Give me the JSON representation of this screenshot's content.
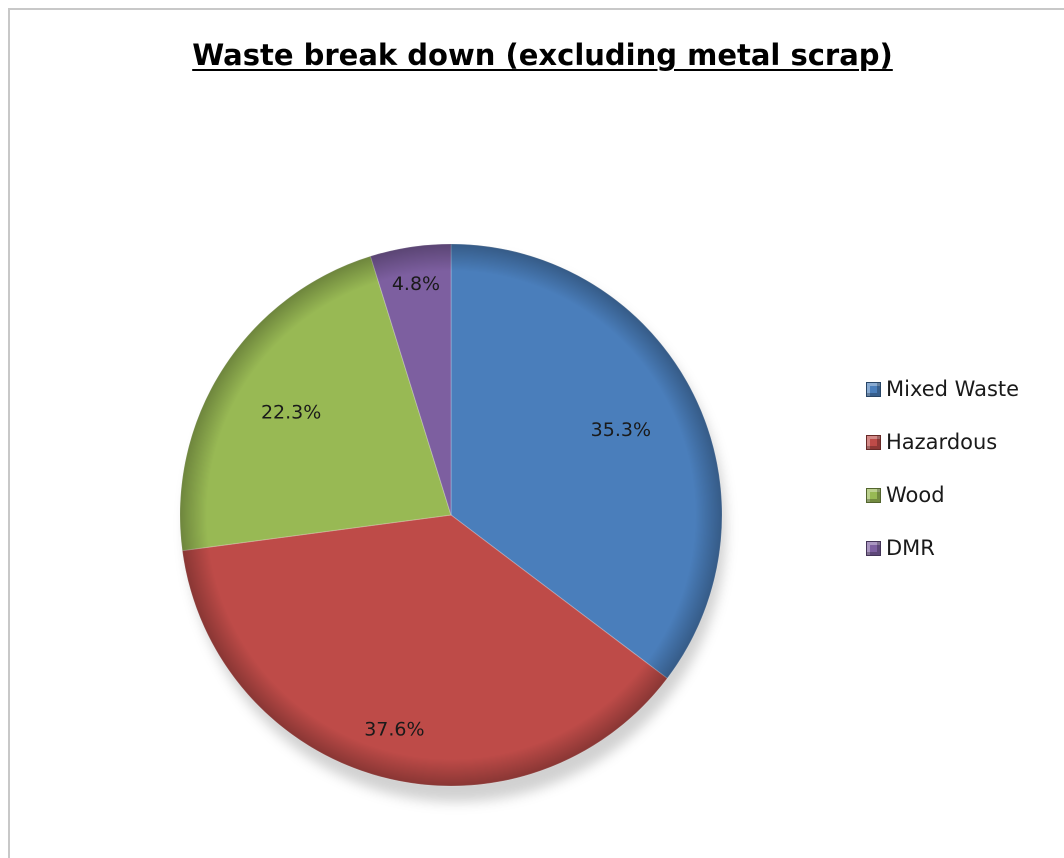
{
  "chart_data": {
    "type": "pie",
    "title": "Waste break down (excluding metal scrap)",
    "slices": [
      {
        "label": "Mixed Waste",
        "value": 35.3,
        "display": "35.3%",
        "color": "#4a7ebb"
      },
      {
        "label": "Hazardous",
        "value": 37.6,
        "display": "37.6%",
        "color": "#be4b48"
      },
      {
        "label": "Wood",
        "value": 22.3,
        "display": "22.3%",
        "color": "#98b954"
      },
      {
        "label": "DMR",
        "value": 4.8,
        "display": "4.8%",
        "color": "#7d5fa0"
      }
    ],
    "start_angle_deg": 0,
    "direction": "clockwise",
    "legend_position": "right"
  }
}
